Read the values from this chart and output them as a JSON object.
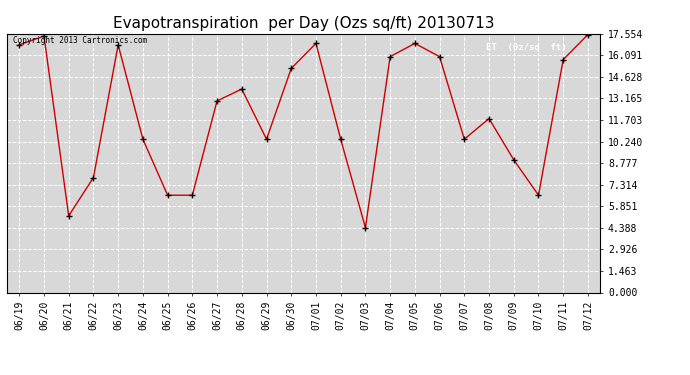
{
  "title": "Evapotranspiration  per Day (Ozs sq/ft) 20130713",
  "copyright_text": "Copyright 2013 Cartronics.com",
  "legend_label": "ET  (0z/sq  ft)",
  "legend_bg": "#cc0000",
  "legend_fg": "#ffffff",
  "x_labels": [
    "06/19",
    "06/20",
    "06/21",
    "06/22",
    "06/23",
    "06/24",
    "06/25",
    "06/26",
    "06/27",
    "06/28",
    "06/29",
    "06/30",
    "07/01",
    "07/02",
    "07/03",
    "07/04",
    "07/05",
    "07/06",
    "07/07",
    "07/08",
    "07/09",
    "07/10",
    "07/11",
    "07/12"
  ],
  "y_values": [
    16.8,
    17.4,
    5.2,
    7.8,
    16.8,
    10.4,
    6.6,
    6.6,
    13.0,
    13.8,
    10.4,
    15.2,
    16.9,
    10.4,
    4.4,
    16.0,
    16.9,
    16.0,
    10.4,
    11.8,
    9.0,
    6.6,
    15.8,
    17.5
  ],
  "y_ticks": [
    0.0,
    1.463,
    2.926,
    4.388,
    5.851,
    7.314,
    8.777,
    10.24,
    11.703,
    13.165,
    14.628,
    16.091,
    17.554
  ],
  "line_color": "#cc0000",
  "marker_color": "#000000",
  "bg_color": "#ffffff",
  "plot_bg_color": "#d8d8d8",
  "grid_color": "#ffffff",
  "title_fontsize": 11,
  "tick_fontsize": 7,
  "ylim": [
    0,
    17.554
  ],
  "xlim": [
    -0.5,
    23.5
  ]
}
